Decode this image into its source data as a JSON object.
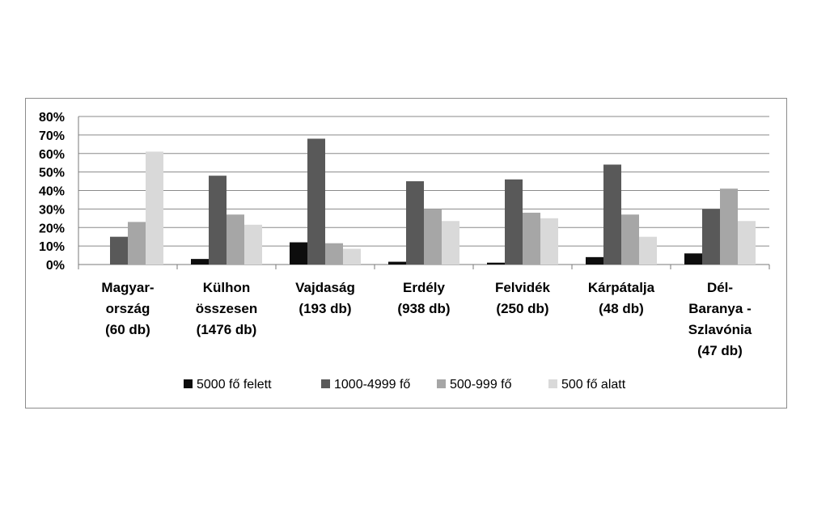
{
  "chart_data": {
    "type": "bar",
    "ylim": [
      0,
      80
    ],
    "y_ticks": [
      "0%",
      "10%",
      "20%",
      "30%",
      "40%",
      "50%",
      "60%",
      "70%",
      "80%"
    ],
    "categories": [
      [
        "Magyar-",
        "ország",
        "(60 db)"
      ],
      [
        "Külhon",
        "összesen",
        "(1476 db)"
      ],
      [
        "Vajdaság",
        "(193 db)"
      ],
      [
        "Erdély",
        "(938 db)"
      ],
      [
        "Felvidék",
        "(250 db)"
      ],
      [
        "Kárpátalja",
        "(48 db)"
      ],
      [
        "Dél-",
        "Baranya -",
        "Szlavónia",
        "(47 db)"
      ]
    ],
    "series": [
      {
        "name": "5000 fő felett",
        "color": "#0d0d0d",
        "values": [
          0,
          3,
          12,
          1.5,
          1,
          4,
          6
        ]
      },
      {
        "name": "1000-4999 fő",
        "color": "#595959",
        "values": [
          15,
          48,
          68,
          45,
          46,
          54,
          30
        ]
      },
      {
        "name": "500-999 fő",
        "color": "#a6a6a6",
        "values": [
          23,
          27,
          11.5,
          30,
          28,
          27,
          41
        ]
      },
      {
        "name": "500 fő alatt",
        "color": "#d9d9d9",
        "values": [
          61,
          21.5,
          8.5,
          23.5,
          25,
          15,
          23.5
        ]
      }
    ],
    "grid": true,
    "legend": "bottom"
  }
}
